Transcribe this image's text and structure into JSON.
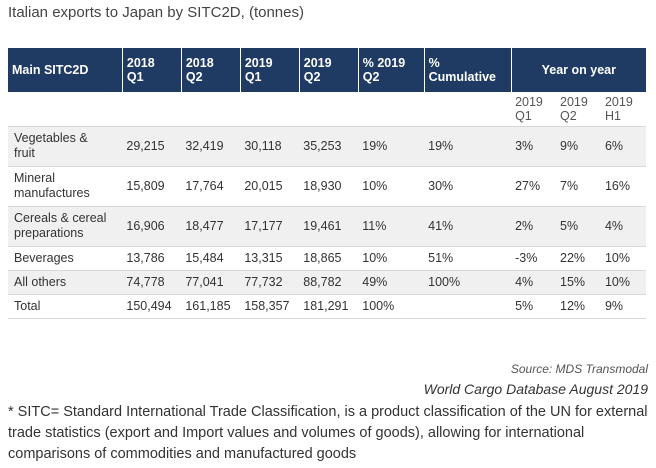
{
  "title": "Italian exports to Japan by SITC2D, (tonnes)",
  "table": {
    "headers": [
      "Main SITC2D",
      "2018\nQ1",
      "2018\nQ2",
      "2019\nQ1",
      "2019\nQ2",
      "% 2019\nQ2",
      "%\nCumulative",
      "Year on year"
    ],
    "yoy_sub": [
      "2019\nQ1",
      "2019\nQ2",
      "2019\nH1"
    ],
    "rows": [
      [
        "Vegetables &\nfruit",
        "29,215",
        "32,419",
        "30,118",
        "35,253",
        "19%",
        "19%",
        "3%",
        "9%",
        "6%"
      ],
      [
        "Mineral\nmanufactures",
        "15,809",
        "17,764",
        "20,015",
        "18,930",
        "10%",
        "30%",
        "27%",
        "7%",
        "16%"
      ],
      [
        "Cereals & cereal\npreparations",
        "16,906",
        "18,477",
        "17,177",
        "19,461",
        "11%",
        "41%",
        "2%",
        "5%",
        "4%"
      ],
      [
        "Beverages",
        "13,786",
        "15,484",
        "13,315",
        "18,865",
        "10%",
        "51%",
        "-3%",
        "22%",
        "10%"
      ],
      [
        "All others",
        "74,778",
        "77,041",
        "77,732",
        "88,782",
        "49%",
        "100%",
        "4%",
        "15%",
        "10%"
      ],
      [
        "Total",
        "150,494",
        "161,185",
        "158,357",
        "181,291",
        "100%",
        "",
        "5%",
        "12%",
        "9%"
      ]
    ]
  },
  "source": "Source: MDS Transmodal",
  "database": "World Cargo Database August 2019",
  "footnote": "* SITC= Standard International Trade Classification, is a product classification of the UN for external trade statistics (export and Import values and volumes of goods), allowing for international comparisons of commodities and manufactured goods"
}
